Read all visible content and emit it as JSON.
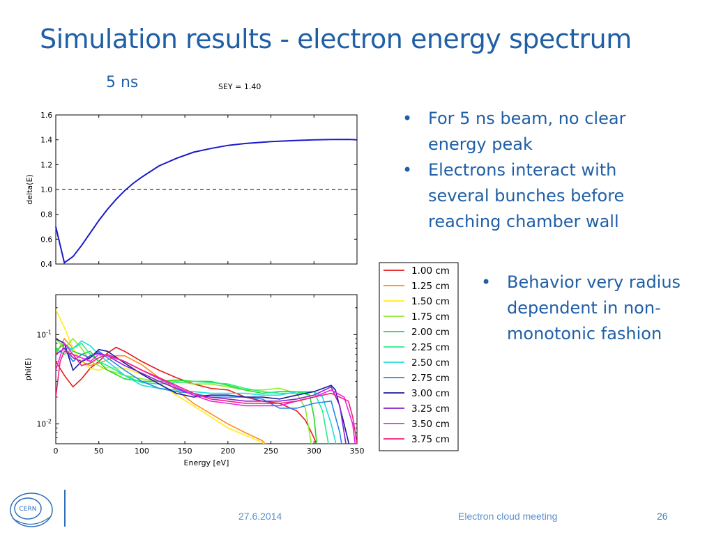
{
  "slide": {
    "title": "Simulation results - electron energy spectrum",
    "subtitle": "5 ns",
    "sey_label": "SEY = 1.40",
    "bullets_top": [
      "For 5 ns beam, no clear energy peak",
      "Electrons interact with several bunches before reaching chamber wall"
    ],
    "bullets_bottom": [
      "Behavior very radius dependent in non-monotonic fashion"
    ],
    "footer": {
      "date": "27.6.2014",
      "meeting": "Electron cloud meeting",
      "page": "26"
    },
    "logo_text": "CERN"
  },
  "chart_data": [
    {
      "type": "line",
      "ylabel": "delta(E)",
      "xlim": [
        0,
        350
      ],
      "ylim": [
        0.4,
        1.6
      ],
      "yticks": [
        "0.4",
        "0.6",
        "0.8",
        "1.0",
        "1.2",
        "1.4",
        "1.6"
      ],
      "reference_line": {
        "y": 1.0,
        "style": "dashed"
      },
      "series": [
        {
          "color": "#1a1acc",
          "x": [
            0,
            10,
            20,
            30,
            40,
            50,
            60,
            70,
            80,
            90,
            100,
            120,
            140,
            160,
            180,
            200,
            220,
            250,
            280,
            300,
            320,
            340,
            350
          ],
          "y": [
            0.7,
            0.41,
            0.46,
            0.55,
            0.65,
            0.75,
            0.84,
            0.92,
            0.99,
            1.05,
            1.1,
            1.19,
            1.25,
            1.3,
            1.33,
            1.355,
            1.37,
            1.385,
            1.395,
            1.4,
            1.402,
            1.403,
            1.4
          ]
        }
      ]
    },
    {
      "type": "line",
      "ylabel": "phi(E)",
      "xlabel": "Energy [eV]",
      "xlim": [
        0,
        350
      ],
      "yscale": "log",
      "ylim": [
        0.006,
        0.28
      ],
      "xticks": [
        "0",
        "50",
        "100",
        "150",
        "200",
        "250",
        "300",
        "350"
      ],
      "yticks": [
        {
          "value": 0.1,
          "label": "10-1"
        },
        {
          "value": 0.01,
          "label": "10-2"
        }
      ],
      "legend": "right, outside plot",
      "series": [
        {
          "name": "1.00 cm",
          "color": "#e41a1c",
          "x": [
            0,
            10,
            20,
            30,
            40,
            50,
            60,
            70,
            80,
            100,
            120,
            140,
            160,
            180,
            200,
            220,
            240,
            260,
            280,
            290,
            300,
            310
          ],
          "y": [
            0.05,
            0.035,
            0.026,
            0.032,
            0.042,
            0.05,
            0.062,
            0.072,
            0.065,
            0.05,
            0.04,
            0.033,
            0.028,
            0.025,
            0.024,
            0.02,
            0.018,
            0.017,
            0.014,
            0.011,
            0.007,
            0.004
          ]
        },
        {
          "name": "1.25 cm",
          "color": "#ff8c1a",
          "x": [
            0,
            10,
            20,
            30,
            40,
            50,
            60,
            70,
            80,
            100,
            120,
            140,
            160,
            180,
            200,
            220,
            240,
            250
          ],
          "y": [
            0.06,
            0.09,
            0.07,
            0.05,
            0.045,
            0.048,
            0.052,
            0.058,
            0.058,
            0.046,
            0.033,
            0.024,
            0.017,
            0.013,
            0.01,
            0.008,
            0.0065,
            0.005
          ]
        },
        {
          "name": "1.50 cm",
          "color": "#ffee1a",
          "x": [
            0,
            10,
            20,
            30,
            40,
            50,
            60,
            80,
            100,
            120,
            140,
            160,
            180,
            200,
            220,
            240,
            250
          ],
          "y": [
            0.19,
            0.12,
            0.07,
            0.05,
            0.042,
            0.04,
            0.043,
            0.042,
            0.036,
            0.028,
            0.021,
            0.016,
            0.012,
            0.009,
            0.0075,
            0.0062,
            0.005
          ]
        },
        {
          "name": "1.75 cm",
          "color": "#8fe82a",
          "x": [
            0,
            10,
            20,
            30,
            40,
            50,
            60,
            80,
            100,
            120,
            140,
            160,
            180,
            200,
            220,
            240,
            260,
            280,
            290,
            300
          ],
          "y": [
            0.09,
            0.07,
            0.09,
            0.07,
            0.05,
            0.045,
            0.04,
            0.035,
            0.032,
            0.03,
            0.03,
            0.028,
            0.028,
            0.026,
            0.024,
            0.024,
            0.025,
            0.022,
            0.015,
            0.004
          ]
        },
        {
          "name": "2.00 cm",
          "color": "#22dd22",
          "x": [
            0,
            10,
            20,
            30,
            40,
            50,
            60,
            80,
            100,
            120,
            140,
            160,
            180,
            200,
            220,
            240,
            260,
            280,
            295,
            300,
            305
          ],
          "y": [
            0.065,
            0.08,
            0.065,
            0.06,
            0.065,
            0.05,
            0.04,
            0.032,
            0.03,
            0.03,
            0.031,
            0.03,
            0.03,
            0.027,
            0.024,
            0.022,
            0.023,
            0.023,
            0.021,
            0.012,
            0.004
          ]
        },
        {
          "name": "2.25 cm",
          "color": "#22ee88",
          "x": [
            0,
            10,
            20,
            30,
            40,
            50,
            60,
            80,
            100,
            120,
            140,
            160,
            180,
            200,
            220,
            240,
            260,
            280,
            300,
            310,
            320
          ],
          "y": [
            0.07,
            0.06,
            0.07,
            0.08,
            0.06,
            0.05,
            0.045,
            0.035,
            0.029,
            0.028,
            0.029,
            0.03,
            0.029,
            0.028,
            0.025,
            0.023,
            0.022,
            0.022,
            0.023,
            0.014,
            0.004
          ]
        },
        {
          "name": "2.50 cm",
          "color": "#22dddd",
          "x": [
            0,
            10,
            20,
            30,
            40,
            50,
            60,
            80,
            100,
            120,
            140,
            160,
            180,
            200,
            220,
            240,
            260,
            280,
            300,
            310,
            320,
            330
          ],
          "y": [
            0.06,
            0.07,
            0.07,
            0.085,
            0.075,
            0.06,
            0.05,
            0.035,
            0.027,
            0.025,
            0.024,
            0.023,
            0.022,
            0.022,
            0.022,
            0.021,
            0.021,
            0.023,
            0.023,
            0.02,
            0.01,
            0.004
          ]
        },
        {
          "name": "2.75 cm",
          "color": "#2288ee",
          "x": [
            0,
            10,
            20,
            30,
            40,
            50,
            60,
            80,
            100,
            120,
            140,
            160,
            180,
            200,
            220,
            240,
            260,
            280,
            300,
            320,
            330,
            335
          ],
          "y": [
            0.06,
            0.07,
            0.05,
            0.06,
            0.055,
            0.065,
            0.055,
            0.04,
            0.03,
            0.025,
            0.023,
            0.022,
            0.02,
            0.02,
            0.02,
            0.019,
            0.015,
            0.015,
            0.017,
            0.018,
            0.008,
            0.004
          ]
        },
        {
          "name": "3.00 cm",
          "color": "#1a1a99",
          "x": [
            0,
            10,
            20,
            30,
            40,
            50,
            60,
            80,
            100,
            120,
            140,
            160,
            180,
            200,
            220,
            240,
            260,
            280,
            300,
            320,
            325,
            335,
            345
          ],
          "y": [
            0.09,
            0.08,
            0.04,
            0.05,
            0.055,
            0.068,
            0.065,
            0.048,
            0.036,
            0.028,
            0.022,
            0.02,
            0.021,
            0.021,
            0.02,
            0.02,
            0.019,
            0.021,
            0.023,
            0.027,
            0.024,
            0.01,
            0.004
          ]
        },
        {
          "name": "3.25 cm",
          "color": "#8822cc",
          "x": [
            0,
            10,
            20,
            30,
            40,
            50,
            60,
            80,
            100,
            120,
            140,
            160,
            180,
            200,
            220,
            240,
            260,
            280,
            300,
            320,
            330,
            340
          ],
          "y": [
            0.06,
            0.07,
            0.055,
            0.05,
            0.058,
            0.062,
            0.058,
            0.045,
            0.037,
            0.03,
            0.025,
            0.021,
            0.02,
            0.019,
            0.018,
            0.018,
            0.018,
            0.019,
            0.021,
            0.026,
            0.016,
            0.004
          ]
        },
        {
          "name": "3.50 cm",
          "color": "#ee22ee",
          "x": [
            0,
            10,
            20,
            30,
            40,
            50,
            60,
            80,
            100,
            120,
            140,
            160,
            180,
            200,
            220,
            240,
            260,
            280,
            300,
            320,
            335,
            345,
            350
          ],
          "y": [
            0.04,
            0.08,
            0.06,
            0.055,
            0.05,
            0.06,
            0.058,
            0.05,
            0.04,
            0.032,
            0.026,
            0.021,
            0.018,
            0.017,
            0.016,
            0.016,
            0.016,
            0.018,
            0.02,
            0.024,
            0.02,
            0.01,
            0.004
          ]
        },
        {
          "name": "3.75 cm",
          "color": "#ee2277",
          "x": [
            0,
            5,
            10,
            20,
            30,
            40,
            50,
            60,
            80,
            100,
            120,
            140,
            160,
            180,
            200,
            220,
            240,
            260,
            280,
            300,
            320,
            340,
            345,
            350
          ],
          "y": [
            0.02,
            0.05,
            0.065,
            0.06,
            0.045,
            0.048,
            0.055,
            0.06,
            0.05,
            0.04,
            0.033,
            0.027,
            0.022,
            0.019,
            0.018,
            0.017,
            0.017,
            0.017,
            0.018,
            0.02,
            0.022,
            0.018,
            0.012,
            0.006
          ]
        }
      ]
    }
  ]
}
